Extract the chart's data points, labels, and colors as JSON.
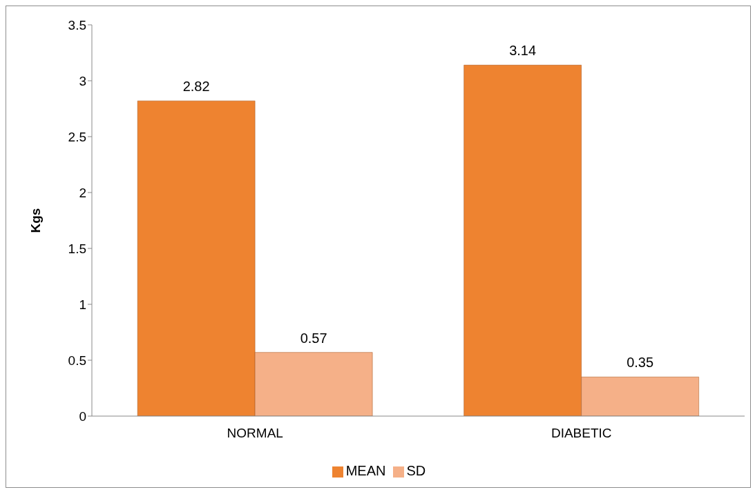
{
  "chart_data": {
    "type": "bar",
    "ylabel": "Kgs",
    "categories": [
      "NORMAL",
      "DIABETIC"
    ],
    "series": [
      {
        "name": "MEAN",
        "color": "#ee8330",
        "values": [
          2.82,
          3.14
        ]
      },
      {
        "name": "SD",
        "color": "#f5b088",
        "values": [
          0.57,
          0.35
        ]
      }
    ],
    "ylim": [
      0,
      3.5
    ],
    "yticks": [
      0,
      0.5,
      1,
      1.5,
      2,
      2.5,
      3,
      3.5
    ],
    "grid": false,
    "legend": "bottom",
    "data_labels": true
  }
}
